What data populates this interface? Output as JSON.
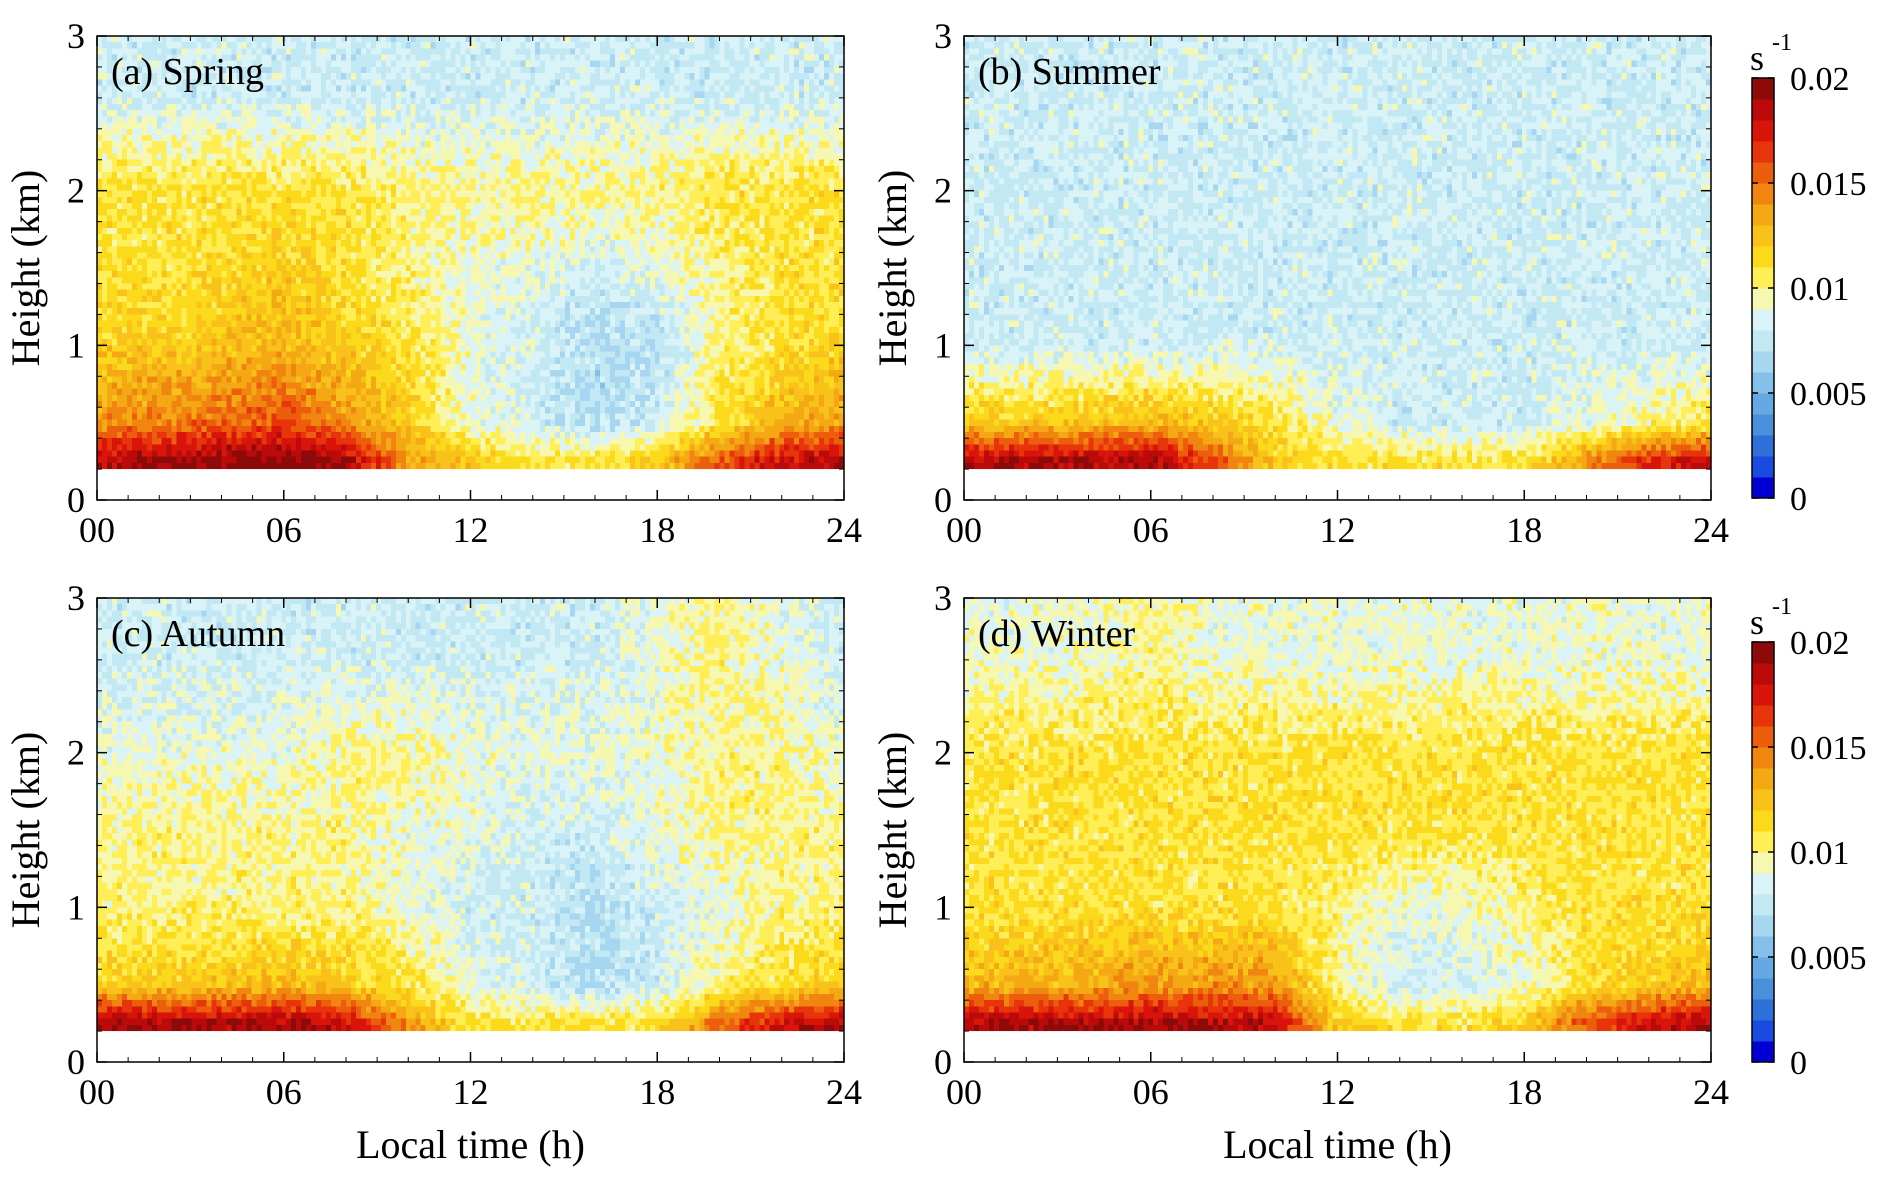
{
  "chart_data": [
    {
      "type": "heatmap",
      "panel_label": "(a) Spring",
      "xlabel": "",
      "ylabel": "Height (km)",
      "xlim": [
        0,
        24
      ],
      "ylim": [
        0,
        3
      ],
      "x_ticks": [
        "00",
        "06",
        "12",
        "18",
        "24"
      ],
      "y_ticks": [
        "0",
        "1",
        "2",
        "3"
      ],
      "clim": [
        0,
        0.02
      ],
      "values_description_grid": {
        "times_h": [
          0,
          3,
          6,
          8,
          10,
          12,
          14,
          16,
          18,
          20,
          22,
          24
        ],
        "heights_km": [
          0.25,
          0.5,
          1.0,
          1.5,
          2.0,
          2.6
        ],
        "values": [
          [
            0.019,
            0.019,
            0.02,
            0.019,
            0.014,
            0.012,
            0.011,
            0.011,
            0.012,
            0.016,
            0.018,
            0.019
          ],
          [
            0.014,
            0.015,
            0.016,
            0.014,
            0.012,
            0.009,
            0.008,
            0.007,
            0.008,
            0.011,
            0.013,
            0.014
          ],
          [
            0.012,
            0.012,
            0.013,
            0.012,
            0.011,
            0.009,
            0.008,
            0.007,
            0.007,
            0.01,
            0.011,
            0.012
          ],
          [
            0.011,
            0.011,
            0.012,
            0.011,
            0.01,
            0.009,
            0.009,
            0.008,
            0.009,
            0.01,
            0.011,
            0.011
          ],
          [
            0.011,
            0.011,
            0.011,
            0.011,
            0.01,
            0.01,
            0.01,
            0.01,
            0.01,
            0.011,
            0.011,
            0.011
          ],
          [
            0.008,
            0.008,
            0.008,
            0.008,
            0.008,
            0.008,
            0.008,
            0.008,
            0.008,
            0.008,
            0.008,
            0.008
          ]
        ]
      }
    },
    {
      "type": "heatmap",
      "panel_label": "(b) Summer",
      "xlabel": "",
      "ylabel": "Height (km)",
      "xlim": [
        0,
        24
      ],
      "ylim": [
        0,
        3
      ],
      "x_ticks": [
        "00",
        "06",
        "12",
        "18",
        "24"
      ],
      "y_ticks": [
        "0",
        "1",
        "2",
        "3"
      ],
      "clim": [
        0,
        0.02
      ],
      "values_description_grid": {
        "times_h": [
          0,
          3,
          6,
          8,
          10,
          12,
          14,
          16,
          18,
          20,
          22,
          24
        ],
        "heights_km": [
          0.25,
          0.5,
          1.0,
          1.5,
          2.0,
          2.6
        ],
        "values": [
          [
            0.019,
            0.019,
            0.019,
            0.016,
            0.012,
            0.011,
            0.011,
            0.011,
            0.011,
            0.014,
            0.017,
            0.018
          ],
          [
            0.012,
            0.012,
            0.013,
            0.012,
            0.011,
            0.009,
            0.008,
            0.008,
            0.008,
            0.009,
            0.01,
            0.011
          ],
          [
            0.008,
            0.008,
            0.008,
            0.008,
            0.008,
            0.008,
            0.008,
            0.008,
            0.008,
            0.008,
            0.008,
            0.008
          ],
          [
            0.008,
            0.008,
            0.008,
            0.008,
            0.008,
            0.008,
            0.008,
            0.008,
            0.008,
            0.008,
            0.008,
            0.008
          ],
          [
            0.008,
            0.008,
            0.008,
            0.008,
            0.008,
            0.008,
            0.008,
            0.008,
            0.008,
            0.008,
            0.008,
            0.008
          ],
          [
            0.008,
            0.008,
            0.008,
            0.008,
            0.008,
            0.008,
            0.008,
            0.008,
            0.008,
            0.008,
            0.008,
            0.008
          ]
        ]
      }
    },
    {
      "type": "heatmap",
      "panel_label": "(c) Autumn",
      "xlabel": "Local time (h)",
      "ylabel": "Height (km)",
      "xlim": [
        0,
        24
      ],
      "ylim": [
        0,
        3
      ],
      "x_ticks": [
        "00",
        "06",
        "12",
        "18",
        "24"
      ],
      "y_ticks": [
        "0",
        "1",
        "2",
        "3"
      ],
      "clim": [
        0,
        0.02
      ],
      "values_description_grid": {
        "times_h": [
          0,
          3,
          6,
          8,
          10,
          12,
          14,
          16,
          18,
          20,
          22,
          24
        ],
        "heights_km": [
          0.25,
          0.5,
          1.0,
          1.5,
          2.0,
          2.6
        ],
        "values": [
          [
            0.019,
            0.019,
            0.019,
            0.018,
            0.014,
            0.011,
            0.011,
            0.011,
            0.011,
            0.015,
            0.018,
            0.019
          ],
          [
            0.012,
            0.012,
            0.013,
            0.012,
            0.011,
            0.009,
            0.008,
            0.007,
            0.008,
            0.01,
            0.011,
            0.012
          ],
          [
            0.01,
            0.01,
            0.01,
            0.01,
            0.009,
            0.008,
            0.008,
            0.007,
            0.008,
            0.009,
            0.01,
            0.01
          ],
          [
            0.01,
            0.01,
            0.01,
            0.01,
            0.009,
            0.009,
            0.008,
            0.008,
            0.009,
            0.01,
            0.01,
            0.01
          ],
          [
            0.009,
            0.009,
            0.009,
            0.01,
            0.01,
            0.009,
            0.009,
            0.009,
            0.009,
            0.01,
            0.01,
            0.009
          ],
          [
            0.008,
            0.008,
            0.008,
            0.008,
            0.008,
            0.008,
            0.008,
            0.008,
            0.009,
            0.01,
            0.009,
            0.008
          ]
        ]
      }
    },
    {
      "type": "heatmap",
      "panel_label": "(d) Winter",
      "xlabel": "Local time (h)",
      "ylabel": "Height (km)",
      "xlim": [
        0,
        24
      ],
      "ylim": [
        0,
        3
      ],
      "x_ticks": [
        "00",
        "06",
        "12",
        "18",
        "24"
      ],
      "y_ticks": [
        "0",
        "1",
        "2",
        "3"
      ],
      "clim": [
        0,
        0.02
      ],
      "values_description_grid": {
        "times_h": [
          0,
          3,
          6,
          8,
          10,
          12,
          14,
          16,
          18,
          20,
          22,
          24
        ],
        "heights_km": [
          0.25,
          0.5,
          1.0,
          1.5,
          2.0,
          2.6
        ],
        "values": [
          [
            0.019,
            0.019,
            0.019,
            0.019,
            0.018,
            0.012,
            0.011,
            0.011,
            0.012,
            0.016,
            0.018,
            0.019
          ],
          [
            0.013,
            0.013,
            0.014,
            0.014,
            0.014,
            0.01,
            0.008,
            0.008,
            0.009,
            0.011,
            0.012,
            0.013
          ],
          [
            0.011,
            0.011,
            0.011,
            0.011,
            0.011,
            0.01,
            0.009,
            0.009,
            0.01,
            0.011,
            0.011,
            0.011
          ],
          [
            0.011,
            0.011,
            0.011,
            0.011,
            0.011,
            0.011,
            0.011,
            0.011,
            0.011,
            0.011,
            0.011,
            0.011
          ],
          [
            0.011,
            0.011,
            0.011,
            0.011,
            0.011,
            0.011,
            0.011,
            0.011,
            0.011,
            0.011,
            0.011,
            0.011
          ],
          [
            0.009,
            0.009,
            0.01,
            0.009,
            0.009,
            0.009,
            0.009,
            0.009,
            0.009,
            0.009,
            0.009,
            0.009
          ]
        ]
      }
    }
  ],
  "colorbar": {
    "unit": "s",
    "unit_superscript": "-1",
    "tick_labels": [
      "0.02",
      "0.015",
      "0.01",
      "0.005",
      "0"
    ],
    "tick_values": [
      0.02,
      0.015,
      0.01,
      0.005,
      0
    ],
    "range": [
      0,
      0.02
    ],
    "colors_low_to_high": [
      "#0000d4",
      "#1a4be0",
      "#2f6fd8",
      "#4a8fdc",
      "#66a9e2",
      "#85c0ea",
      "#a6d6f0",
      "#c2e8f4",
      "#d9f3f7",
      "#f6f7b0",
      "#ffee55",
      "#fbd91b",
      "#f8c21a",
      "#f4a814",
      "#f0860f",
      "#ec5e0c",
      "#e8340a",
      "#d9140a",
      "#bb0a0a",
      "#8c0a0a"
    ]
  }
}
